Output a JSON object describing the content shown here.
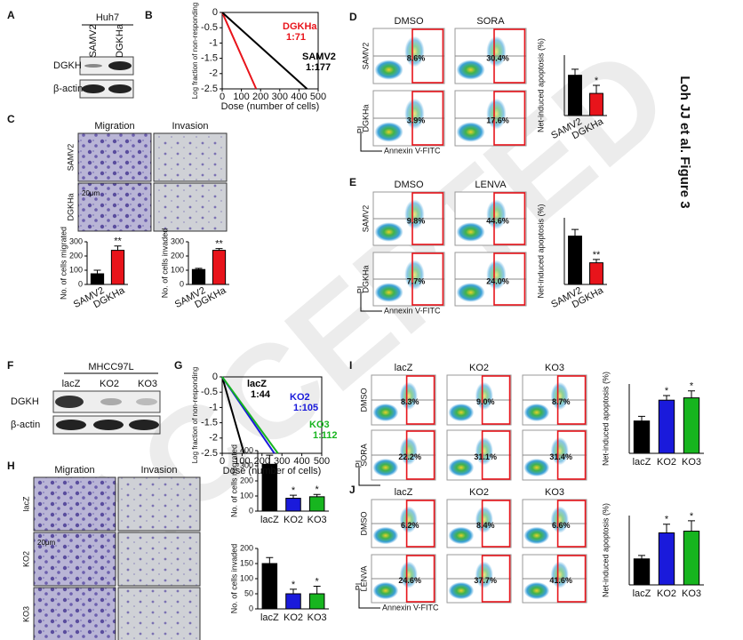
{
  "figure_label": "Loh JJ et al. Figure 3",
  "watermark": "ACCEPTED",
  "panels": {
    "A": {
      "letter": "A",
      "cell_line": "Huh7",
      "lanes": [
        "SAMV2",
        "DGKHa"
      ],
      "rows": [
        "DGKH",
        "β-actin"
      ]
    },
    "B": {
      "letter": "B"
    },
    "C": {
      "letter": "C",
      "columns": [
        "Migration",
        "Invasion"
      ],
      "rows": [
        "SAMV2",
        "DGKHa"
      ],
      "scale": "20μm"
    },
    "D": {
      "letter": "D",
      "columns": [
        "DMSO",
        "SORA"
      ],
      "rows": [
        "SAMV2",
        "DGKHa"
      ],
      "percentages": [
        [
          "8.6%",
          "30.4%"
        ],
        [
          "3.9%",
          "17.6%"
        ]
      ],
      "y_axis": "PI",
      "x_axis": "Annexin V-FITC"
    },
    "E": {
      "letter": "E",
      "columns": [
        "DMSO",
        "LENVA"
      ],
      "rows": [
        "SAMV2",
        "DGKHa"
      ],
      "percentages": [
        [
          "9.8%",
          "44.6%"
        ],
        [
          "7.7%",
          "24.0%"
        ]
      ],
      "y_axis": "PI",
      "x_axis": "Annexin V-FITC"
    },
    "F": {
      "letter": "F",
      "cell_line": "MHCC97L",
      "lanes": [
        "lacZ",
        "KO2",
        "KO3"
      ],
      "rows": [
        "DGKH",
        "β-actin"
      ]
    },
    "G": {
      "letter": "G"
    },
    "H": {
      "letter": "H",
      "columns": [
        "Migration",
        "Invasion"
      ],
      "rows": [
        "lacZ",
        "KO2",
        "KO3"
      ],
      "scale": "20μm"
    },
    "I": {
      "letter": "I",
      "columns": [
        "lacZ",
        "KO2",
        "KO3"
      ],
      "rows": [
        "DMSO",
        "SORA"
      ],
      "percentages": [
        [
          "8.3%",
          "9.0%",
          "8.7%"
        ],
        [
          "22.2%",
          "31.1%",
          "31.4%"
        ]
      ],
      "y_axis": "PI"
    },
    "J": {
      "letter": "J",
      "columns": [
        "lacZ",
        "KO2",
        "KO3"
      ],
      "rows": [
        "DMSO",
        "LENVA"
      ],
      "percentages": [
        [
          "6.2%",
          "8.4%",
          "6.6%"
        ],
        [
          "24.6%",
          "37.7%",
          "41.6%"
        ]
      ],
      "y_axis": "PI",
      "x_axis": "Annexin V-FITC"
    }
  },
  "chart_data": [
    {
      "type": "bar",
      "y_label": "No. of cells migrated",
      "categories": [
        "SAMV2",
        "DGKHa"
      ],
      "values": [
        75,
        240
      ],
      "errors": [
        25,
        30
      ],
      "colors": [
        "#000000",
        "#e8141b"
      ],
      "significance": [
        null,
        "**"
      ],
      "ylim": [
        0,
        300
      ],
      "yticks": [
        0,
        100,
        200,
        300
      ]
    },
    {
      "type": "bar",
      "y_label": "No. of cells invaded",
      "categories": [
        "SAMV2",
        "DGKHa"
      ],
      "values": [
        105,
        240
      ],
      "errors": [
        8,
        12
      ],
      "colors": [
        "#000000",
        "#e8141b"
      ],
      "significance": [
        null,
        "**"
      ],
      "ylim": [
        0,
        300
      ],
      "yticks": [
        0,
        100,
        200,
        300
      ]
    },
    {
      "type": "bar",
      "y_label": "Net-induced apoptosis (%)",
      "categories": [
        "SAMV2",
        "DGKHa"
      ],
      "values": [
        20,
        11
      ],
      "errors": [
        3,
        4
      ],
      "colors": [
        "#000000",
        "#e8141b"
      ],
      "significance": [
        null,
        "*"
      ],
      "ylim": [
        0,
        30
      ]
    },
    {
      "type": "bar",
      "y_label": "Net-induced apoptosis (%)",
      "categories": [
        "SAMV2",
        "DGKHa"
      ],
      "values": [
        29,
        13
      ],
      "errors": [
        4,
        2
      ],
      "colors": [
        "#000000",
        "#e8141b"
      ],
      "significance": [
        null,
        "**"
      ],
      "ylim": [
        0,
        40
      ]
    },
    {
      "type": "bar",
      "y_label": "No. of cells migrated",
      "categories": [
        "lacZ",
        "KO2",
        "KO3"
      ],
      "values": [
        310,
        85,
        95
      ],
      "errors": [
        60,
        20,
        15
      ],
      "colors": [
        "#000000",
        "#1a1adb",
        "#17b51f"
      ],
      "significance": [
        null,
        "*",
        "*"
      ],
      "ylim": [
        0,
        400
      ],
      "yticks": [
        0,
        100,
        200,
        300,
        400
      ]
    },
    {
      "type": "bar",
      "y_label": "No. of cells invaded",
      "categories": [
        "lacZ",
        "KO2",
        "KO3"
      ],
      "values": [
        150,
        50,
        50
      ],
      "errors": [
        20,
        15,
        25
      ],
      "colors": [
        "#000000",
        "#1a1adb",
        "#17b51f"
      ],
      "significance": [
        null,
        "*",
        "*"
      ],
      "ylim": [
        0,
        200
      ],
      "yticks": [
        0,
        50,
        100,
        150,
        200
      ]
    },
    {
      "type": "bar",
      "y_label": "Net-induced apoptosis (%)",
      "categories": [
        "lacZ",
        "KO2",
        "KO3"
      ],
      "values": [
        14,
        23,
        24
      ],
      "errors": [
        2,
        2,
        3
      ],
      "colors": [
        "#000000",
        "#1a1adb",
        "#17b51f"
      ],
      "significance": [
        null,
        "*",
        "*"
      ],
      "ylim": [
        0,
        30
      ]
    },
    {
      "type": "bar",
      "y_label": "Net-induced apoptosis (%)",
      "categories": [
        "lacZ",
        "KO2",
        "KO3"
      ],
      "values": [
        15,
        30,
        31
      ],
      "errors": [
        2,
        5,
        6
      ],
      "colors": [
        "#000000",
        "#1a1adb",
        "#17b51f"
      ],
      "significance": [
        null,
        "*",
        "*"
      ],
      "ylim": [
        0,
        40
      ]
    },
    {
      "type": "line",
      "y_label": "Log fraction of non-responding",
      "x_label": "Dose (number of cells)",
      "series": [
        {
          "name": "DGKHa",
          "frequency": "1:71",
          "color": "#e8141b",
          "x": [
            0,
            177
          ],
          "values": [
            0,
            -2.5
          ]
        },
        {
          "name": "SAMV2",
          "frequency": "1:177",
          "color": "#000000",
          "x": [
            0,
            442
          ],
          "values": [
            0,
            -2.5
          ]
        }
      ],
      "xlim": [
        0,
        500
      ],
      "xticks": [
        0,
        100,
        200,
        300,
        400,
        500
      ],
      "ylim": [
        -2.5,
        0
      ],
      "yticks": [
        0,
        -0.5,
        -1,
        -1.5,
        -2,
        -2.5
      ]
    },
    {
      "type": "line",
      "y_label": "Log fraction of non-responding",
      "x_label": "Dose (number of cells)",
      "series": [
        {
          "name": "lacZ",
          "frequency": "1:44",
          "color": "#000000",
          "x": [
            0,
            110
          ],
          "values": [
            0,
            -2.5
          ]
        },
        {
          "name": "KO2",
          "frequency": "1:105",
          "color": "#1a1adb",
          "x": [
            0,
            262
          ],
          "values": [
            0,
            -2.5
          ]
        },
        {
          "name": "KO3",
          "frequency": "1:112",
          "color": "#17b51f",
          "x": [
            0,
            280
          ],
          "values": [
            0,
            -2.5
          ]
        }
      ],
      "xlim": [
        0,
        500
      ],
      "xticks": [
        0,
        100,
        200,
        300,
        400,
        500
      ],
      "ylim": [
        -2.5,
        0
      ],
      "yticks": [
        0,
        -0.5,
        -1,
        -1.5,
        -2,
        -2.5
      ]
    }
  ]
}
